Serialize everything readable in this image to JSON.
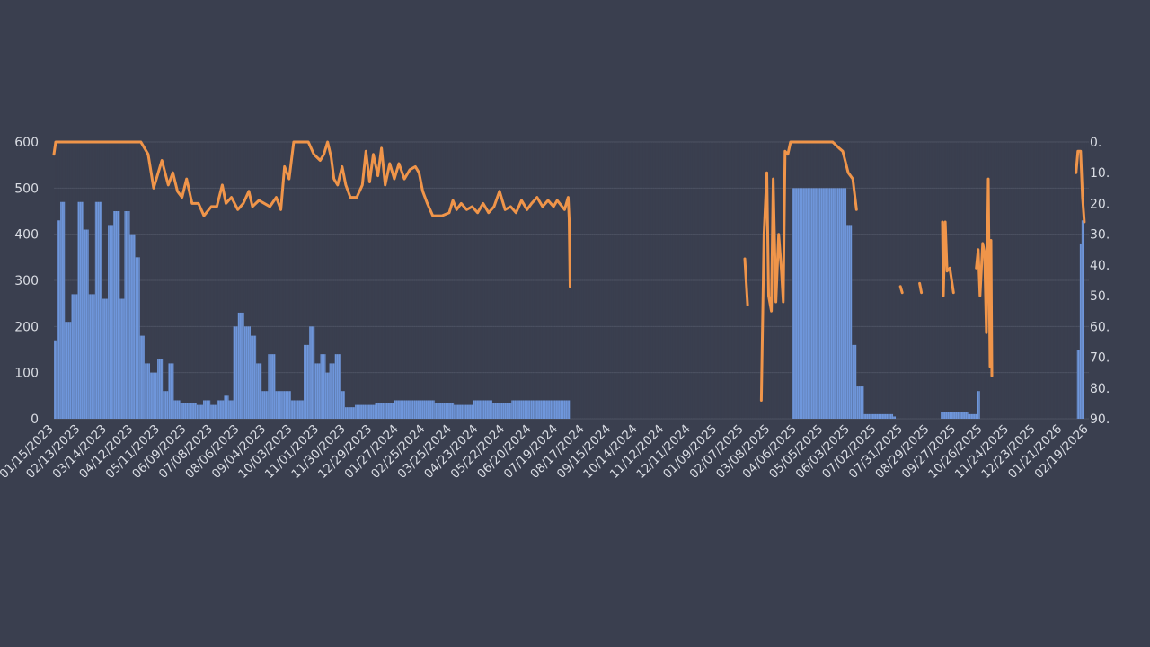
{
  "chart_data": {
    "type": "bar+line",
    "title": "",
    "xlabel": "",
    "ylabel": "",
    "grid": true,
    "legend": "none",
    "x_axis": {
      "start_date": "01/15/2023",
      "end_date": "02/19/2026",
      "tick_labels": [
        "01/15/2023",
        "02/13/2023",
        "03/14/2023",
        "04/12/2023",
        "05/11/2023",
        "06/09/2023",
        "07/08/2023",
        "08/06/2023",
        "09/04/2023",
        "10/03/2023",
        "11/01/2023",
        "11/30/2023",
        "12/29/2023",
        "01/27/2024",
        "02/25/2024",
        "03/25/2024",
        "04/23/2024",
        "05/22/2024",
        "06/20/2024",
        "07/19/2024",
        "08/17/2024",
        "09/15/2024",
        "10/14/2024",
        "11/12/2024",
        "12/11/2024",
        "01/09/2025",
        "02/07/2025",
        "03/08/2025",
        "04/06/2025",
        "05/05/2025",
        "06/03/2025",
        "07/02/2025",
        "07/31/2025",
        "08/29/2025",
        "09/27/2025",
        "10/26/2025",
        "11/24/2025",
        "12/23/2025",
        "01/21/2026",
        "02/19/2026"
      ]
    },
    "y_left": {
      "ylim": [
        0,
        600
      ],
      "ticks": [
        "0",
        "100",
        "200",
        "300",
        "400",
        "500",
        "600"
      ]
    },
    "y_right": {
      "ylim": [
        0,
        90
      ],
      "inverted": true,
      "ticks": [
        "0.",
        "10.",
        "20.",
        "30.",
        "40.",
        "50.",
        "60.",
        "70.",
        "80.",
        "90."
      ]
    },
    "series": [
      {
        "type": "bar",
        "axis": "left",
        "color": "#6f97dc",
        "points": [
          [
            "01/15/2023",
            170
          ],
          [
            "01/18/2023",
            430
          ],
          [
            "01/22/2023",
            470
          ],
          [
            "01/27/2023",
            210
          ],
          [
            "02/03/2023",
            270
          ],
          [
            "02/10/2023",
            470
          ],
          [
            "02/16/2023",
            410
          ],
          [
            "02/22/2023",
            270
          ],
          [
            "03/01/2023",
            470
          ],
          [
            "03/08/2023",
            260
          ],
          [
            "03/15/2023",
            420
          ],
          [
            "03/21/2023",
            450
          ],
          [
            "03/28/2023",
            260
          ],
          [
            "04/02/2023",
            450
          ],
          [
            "04/08/2023",
            400
          ],
          [
            "04/14/2023",
            350
          ],
          [
            "04/19/2023",
            180
          ],
          [
            "04/24/2023",
            120
          ],
          [
            "04/30/2023",
            100
          ],
          [
            "05/08/2023",
            130
          ],
          [
            "05/14/2023",
            60
          ],
          [
            "05/20/2023",
            120
          ],
          [
            "05/26/2023",
            40
          ],
          [
            "06/02/2023",
            35
          ],
          [
            "06/12/2023",
            35
          ],
          [
            "06/20/2023",
            30
          ],
          [
            "06/27/2023",
            40
          ],
          [
            "07/05/2023",
            30
          ],
          [
            "07/12/2023",
            40
          ],
          [
            "07/20/2023",
            50
          ],
          [
            "07/25/2023",
            40
          ],
          [
            "07/30/2023",
            200
          ],
          [
            "08/04/2023",
            230
          ],
          [
            "08/11/2023",
            200
          ],
          [
            "08/18/2023",
            180
          ],
          [
            "08/24/2023",
            120
          ],
          [
            "08/30/2023",
            60
          ],
          [
            "09/06/2023",
            140
          ],
          [
            "09/14/2023",
            60
          ],
          [
            "09/22/2023",
            60
          ],
          [
            "10/01/2023",
            40
          ],
          [
            "10/08/2023",
            40
          ],
          [
            "10/15/2023",
            160
          ],
          [
            "10/21/2023",
            200
          ],
          [
            "10/27/2023",
            120
          ],
          [
            "11/02/2023",
            140
          ],
          [
            "11/08/2023",
            100
          ],
          [
            "11/12/2023",
            120
          ],
          [
            "11/18/2023",
            140
          ],
          [
            "11/24/2023",
            60
          ],
          [
            "11/29/2023",
            25
          ],
          [
            "12/10/2023",
            30
          ],
          [
            "01/01/2024",
            35
          ],
          [
            "01/22/2024",
            40
          ],
          [
            "02/12/2024",
            40
          ],
          [
            "03/06/2024",
            35
          ],
          [
            "03/27/2024",
            30
          ],
          [
            "04/17/2024",
            40
          ],
          [
            "05/08/2024",
            35
          ],
          [
            "05/29/2024",
            40
          ],
          [
            "06/19/2024",
            40
          ],
          [
            "07/10/2024",
            40
          ],
          [
            "07/29/2024",
            40
          ],
          [
            "04/01/2025",
            500
          ],
          [
            "04/10/2025",
            500
          ],
          [
            "04/20/2025",
            500
          ],
          [
            "04/30/2025",
            500
          ],
          [
            "05/10/2025",
            500
          ],
          [
            "05/20/2025",
            500
          ],
          [
            "05/30/2025",
            420
          ],
          [
            "06/05/2025",
            160
          ],
          [
            "06/10/2025",
            70
          ],
          [
            "06/18/2025",
            10
          ],
          [
            "07/20/2025",
            5
          ],
          [
            "09/10/2025",
            15
          ],
          [
            "10/10/2025",
            10
          ],
          [
            "10/20/2025",
            60
          ],
          [
            "02/06/2026",
            150
          ],
          [
            "02/09/2026",
            380
          ],
          [
            "02/11/2026",
            430
          ],
          [
            "02/14/2026",
            0
          ]
        ]
      },
      {
        "type": "line",
        "axis": "right",
        "color": "#f0954a",
        "segments": [
          [
            [
              "01/15/2023",
              4
            ],
            [
              "01/17/2023",
              0
            ],
            [
              "02/20/2023",
              0
            ],
            [
              "03/20/2023",
              0
            ],
            [
              "04/20/2023",
              0
            ],
            [
              "04/28/2023",
              4
            ],
            [
              "05/04/2023",
              15
            ],
            [
              "05/09/2023",
              10
            ],
            [
              "05/13/2023",
              6
            ],
            [
              "05/20/2023",
              14
            ],
            [
              "05/25/2023",
              10
            ],
            [
              "05/30/2023",
              16
            ],
            [
              "06/04/2023",
              18
            ],
            [
              "06/09/2023",
              12
            ],
            [
              "06/15/2023",
              20
            ],
            [
              "06/22/2023",
              20
            ],
            [
              "06/28/2023",
              24
            ],
            [
              "07/06/2023",
              21
            ],
            [
              "07/12/2023",
              21
            ],
            [
              "07/18/2023",
              14
            ],
            [
              "07/22/2023",
              20
            ],
            [
              "07/28/2023",
              18
            ],
            [
              "08/04/2023",
              22
            ],
            [
              "08/10/2023",
              20
            ],
            [
              "08/16/2023",
              16
            ],
            [
              "08/20/2023",
              21
            ],
            [
              "08/27/2023",
              19
            ],
            [
              "09/02/2023",
              20
            ],
            [
              "09/08/2023",
              21
            ],
            [
              "09/15/2023",
              18
            ],
            [
              "09/20/2023",
              22
            ],
            [
              "09/24/2023",
              8
            ],
            [
              "09/29/2023",
              12
            ],
            [
              "10/04/2023",
              0
            ],
            [
              "10/14/2023",
              0
            ],
            [
              "10/20/2023",
              0
            ],
            [
              "10/26/2023",
              4
            ],
            [
              "11/02/2023",
              6
            ],
            [
              "11/06/2023",
              4
            ],
            [
              "11/10/2023",
              0
            ],
            [
              "11/14/2023",
              5
            ],
            [
              "11/17/2023",
              12
            ],
            [
              "11/21/2023",
              14
            ],
            [
              "11/26/2023",
              8
            ],
            [
              "11/30/2023",
              14
            ],
            [
              "12/05/2023",
              18
            ],
            [
              "12/12/2023",
              18
            ],
            [
              "12/18/2023",
              14
            ],
            [
              "12/22/2023",
              3
            ],
            [
              "12/26/2023",
              13
            ],
            [
              "12/30/2023",
              4
            ],
            [
              "01/04/2024",
              11
            ],
            [
              "01/08/2024",
              2
            ],
            [
              "01/12/2024",
              14
            ],
            [
              "01/17/2024",
              7
            ],
            [
              "01/22/2024",
              12
            ],
            [
              "01/27/2024",
              7
            ],
            [
              "02/02/2024",
              12
            ],
            [
              "02/08/2024",
              9
            ],
            [
              "02/14/2024",
              8
            ],
            [
              "02/18/2024",
              10
            ],
            [
              "02/22/2024",
              16
            ],
            [
              "02/27/2024",
              20
            ],
            [
              "03/04/2024",
              24
            ],
            [
              "03/14/2024",
              24
            ],
            [
              "03/22/2024",
              23
            ],
            [
              "03/26/2024",
              19
            ],
            [
              "03/30/2024",
              22
            ],
            [
              "04/04/2024",
              20
            ],
            [
              "04/10/2024",
              22
            ],
            [
              "04/16/2024",
              21
            ],
            [
              "04/22/2024",
              23
            ],
            [
              "04/28/2024",
              20
            ],
            [
              "05/04/2024",
              23
            ],
            [
              "05/10/2024",
              21
            ],
            [
              "05/16/2024",
              16
            ],
            [
              "05/22/2024",
              22
            ],
            [
              "05/28/2024",
              21
            ],
            [
              "06/03/2024",
              23
            ],
            [
              "06/09/2024",
              19
            ],
            [
              "06/15/2024",
              22
            ],
            [
              "06/20/2024",
              20
            ],
            [
              "06/26/2024",
              18
            ],
            [
              "07/02/2024",
              21
            ],
            [
              "07/08/2024",
              19
            ],
            [
              "07/14/2024",
              21
            ],
            [
              "07/18/2024",
              19
            ],
            [
              "07/26/2024",
              22
            ],
            [
              "07/30/2024",
              18
            ],
            [
              "07/31/2024",
              25
            ],
            [
              "08/01/2024",
              47
            ]
          ],
          [
            [
              "02/08/2025",
              38
            ],
            [
              "02/11/2025",
              53
            ]
          ],
          [
            [
              "02/26/2025",
              84
            ],
            [
              "03/01/2025",
              30
            ],
            [
              "03/04/2025",
              10
            ],
            [
              "03/06/2025",
              50
            ],
            [
              "03/09/2025",
              55
            ],
            [
              "03/11/2025",
              12
            ],
            [
              "03/14/2025",
              52
            ],
            [
              "03/17/2025",
              30
            ],
            [
              "03/20/2025",
              42
            ],
            [
              "03/22/2025",
              52
            ],
            [
              "03/24/2025",
              3
            ],
            [
              "03/27/2025",
              4
            ],
            [
              "03/30/2025",
              0
            ],
            [
              "04/15/2025",
              0
            ],
            [
              "05/01/2025",
              0
            ],
            [
              "05/15/2025",
              0
            ],
            [
              "05/22/2025",
              2
            ],
            [
              "05/26/2025",
              3
            ],
            [
              "06/01/2025",
              10
            ],
            [
              "06/06/2025",
              12
            ],
            [
              "06/10/2025",
              22
            ]
          ],
          [
            [
              "07/28/2025",
              47
            ],
            [
              "07/30/2025",
              49
            ]
          ],
          [
            [
              "08/18/2025",
              46
            ],
            [
              "08/20/2025",
              49
            ]
          ],
          [
            [
              "09/12/2025",
              26
            ],
            [
              "09/13/2025",
              50
            ],
            [
              "09/15/2025",
              26
            ],
            [
              "09/17/2025",
              42
            ],
            [
              "09/20/2025",
              41
            ],
            [
              "09/24/2025",
              49
            ]
          ],
          [
            [
              "10/19/2025",
              41
            ],
            [
              "10/21/2025",
              35
            ],
            [
              "10/23/2025",
              50
            ],
            [
              "10/26/2025",
              33
            ],
            [
              "10/28/2025",
              36
            ],
            [
              "10/30/2025",
              62
            ],
            [
              "11/01/2025",
              12
            ],
            [
              "11/03/2025",
              73
            ],
            [
              "11/04/2025",
              32
            ],
            [
              "11/05/2025",
              76
            ]
          ],
          [
            [
              "02/05/2026",
              10
            ],
            [
              "02/07/2026",
              3
            ],
            [
              "02/10/2026",
              3
            ],
            [
              "02/12/2026",
              18
            ],
            [
              "02/14/2026",
              26
            ]
          ]
        ]
      }
    ]
  }
}
